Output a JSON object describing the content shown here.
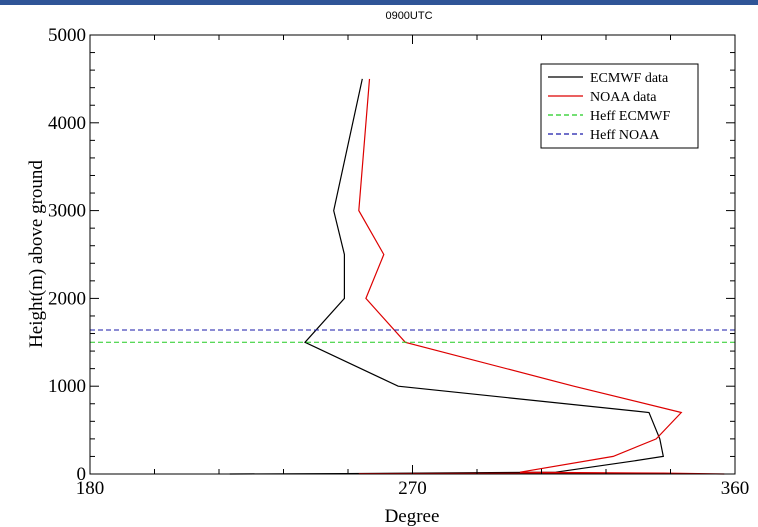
{
  "header": {
    "accent_color": "#2f5597"
  },
  "chart_data": {
    "type": "line",
    "title": "0900UTC",
    "xlabel": "Degree",
    "ylabel": "Height(m) above ground",
    "xlim": [
      180,
      360
    ],
    "ylim": [
      0,
      5000
    ],
    "x_ticks": [
      180,
      270,
      360
    ],
    "y_ticks": [
      0,
      1000,
      2000,
      3000,
      4000,
      5000
    ],
    "grid": false,
    "legend_position": "top-right",
    "series": [
      {
        "name": "ECMWF data",
        "color": "#000000",
        "style": "solid",
        "points": [
          [
            219,
            0
          ],
          [
            251,
            5
          ],
          [
            310,
            20
          ],
          [
            332,
            150
          ],
          [
            340,
            200
          ],
          [
            339,
            400
          ],
          [
            336,
            700
          ],
          [
            266,
            1000
          ],
          [
            240,
            1500
          ],
          [
            251,
            2000
          ],
          [
            251,
            2500
          ],
          [
            248,
            3000
          ],
          [
            256,
            4500
          ]
        ]
      },
      {
        "name": "NOAA data",
        "color": "#dd0000",
        "style": "solid",
        "points": [
          [
            255,
            5
          ],
          [
            340,
            10
          ],
          [
            357,
            0
          ],
          [
            340,
            10
          ],
          [
            300,
            20
          ],
          [
            326,
            200
          ],
          [
            338,
            400
          ],
          [
            345,
            700
          ],
          [
            315,
            1000
          ],
          [
            268,
            1500
          ],
          [
            257,
            2000
          ],
          [
            262,
            2500
          ],
          [
            255,
            3000
          ],
          [
            258,
            4500
          ]
        ]
      },
      {
        "name": "Heff ECMWF",
        "color": "#22cc22",
        "style": "dashed",
        "value": 1500
      },
      {
        "name": "Heff NOAA",
        "color": "#1a1aaa",
        "style": "dashed",
        "value": 1640
      }
    ]
  }
}
